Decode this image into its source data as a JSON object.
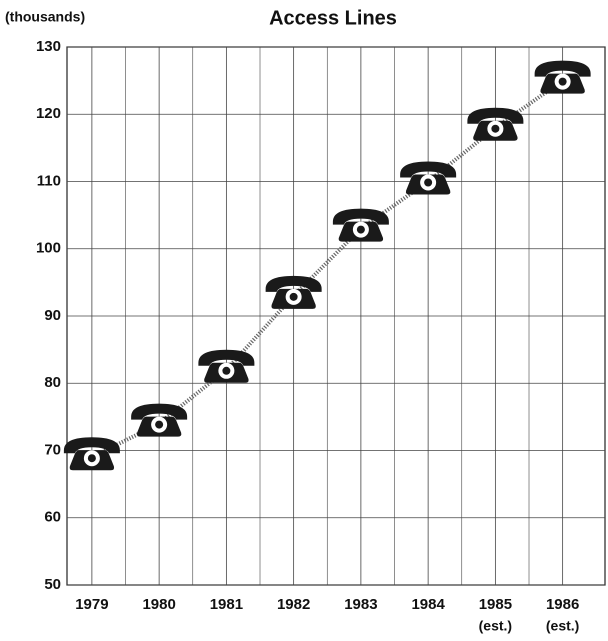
{
  "chart_data": {
    "type": "line",
    "title": "Access Lines",
    "y_label": "(thousands)",
    "categories": [
      "1979",
      "1980",
      "1981",
      "1982",
      "1983",
      "1984",
      "1985",
      "1986"
    ],
    "category_notes": [
      null,
      null,
      null,
      null,
      null,
      null,
      "(est.)",
      "(est.)"
    ],
    "values": [
      69,
      74,
      82,
      93,
      103,
      110,
      118,
      125
    ],
    "color": "#1a1a1a",
    "ylim": [
      50,
      130
    ],
    "yticks": [
      50,
      60,
      70,
      80,
      90,
      100,
      110,
      120,
      130
    ],
    "grid": true
  }
}
